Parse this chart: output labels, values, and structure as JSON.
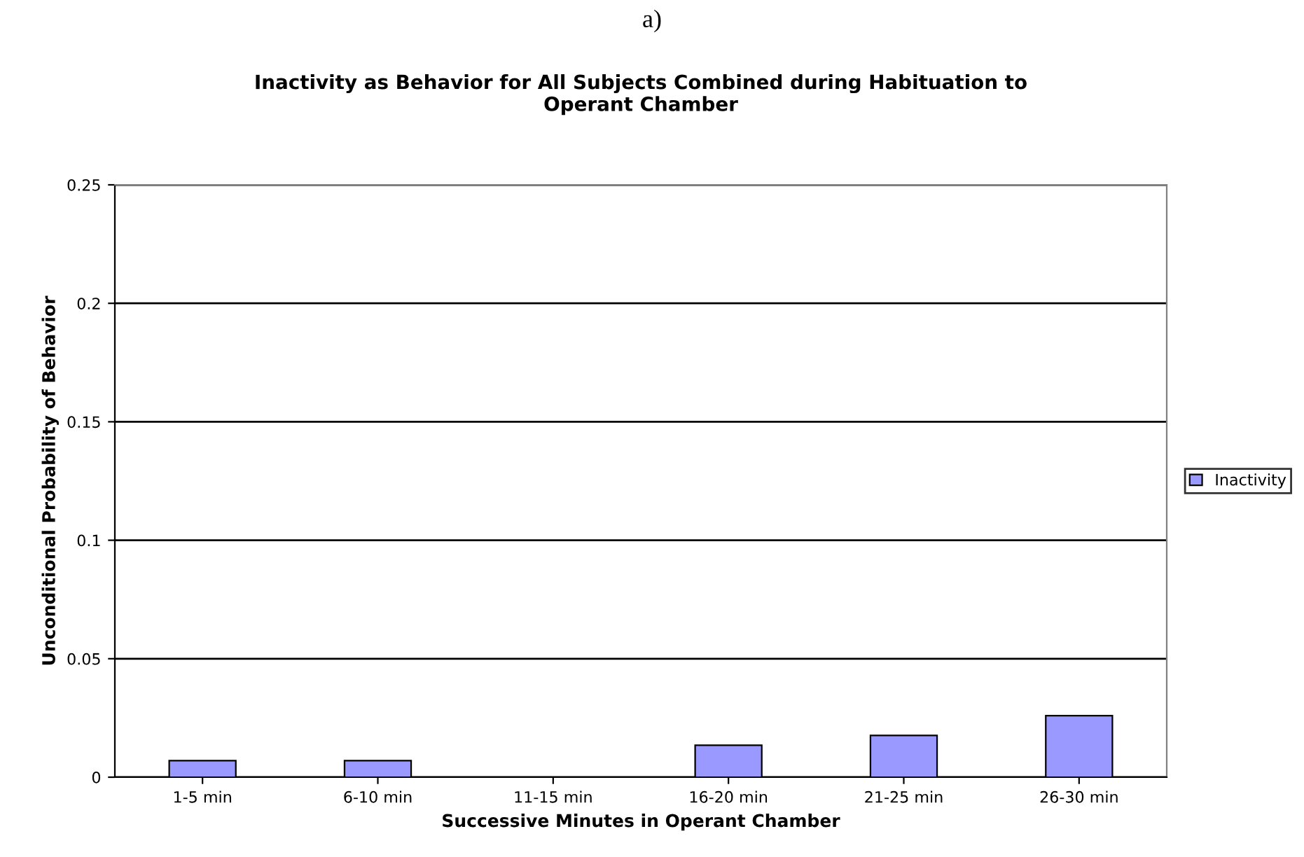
{
  "chart_data": {
    "type": "bar",
    "title": "Inactivity as Behavior for All Subjects Combined during Habituation to\nOperant Chamber",
    "xlabel": "Successive Minutes in Operant Chamber",
    "ylabel": "Unconditional Probability of Behavior",
    "annotations": [
      "a)"
    ],
    "categories": [
      "1-5 min",
      "6-10 min",
      "11-15 min",
      "16-20 min",
      "21-25 min",
      "26-30 min"
    ],
    "series": [
      {
        "name": "Inactivity",
        "color": "#9999ff",
        "values": [
          0.007,
          0.007,
          0,
          0.0135,
          0.0176,
          0.026
        ]
      }
    ],
    "ylim": [
      0,
      0.25
    ],
    "yticks": [
      0,
      0.05,
      0.1,
      0.15,
      0.2,
      0.25
    ],
    "grid": "y",
    "legend": "right"
  }
}
